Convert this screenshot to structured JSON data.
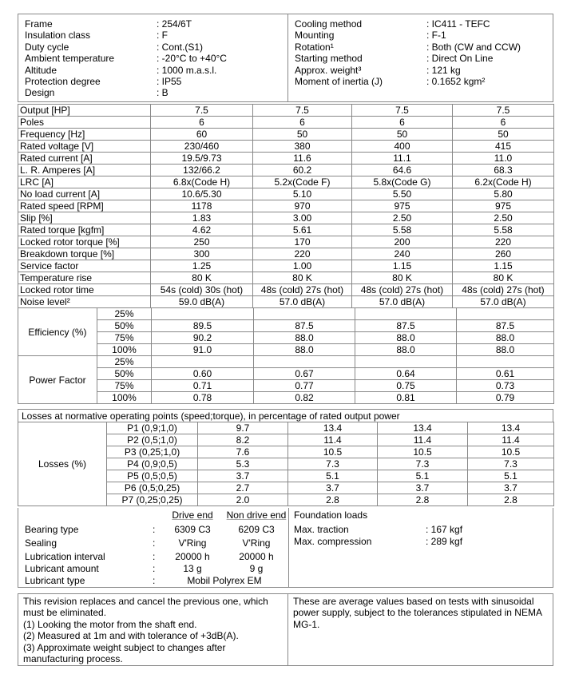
{
  "general_left": [
    {
      "k": "Frame",
      "v": ": 254/6T"
    },
    {
      "k": "Insulation class",
      "v": ": F"
    },
    {
      "k": "Duty cycle",
      "v": ": Cont.(S1)"
    },
    {
      "k": "Ambient temperature",
      "v": ": -20°C to +40°C"
    },
    {
      "k": "Altitude",
      "v": ": 1000 m.a.s.l."
    },
    {
      "k": "Protection degree",
      "v": ": IP55"
    },
    {
      "k": "Design",
      "v": ": B"
    }
  ],
  "general_right": [
    {
      "k": "Cooling method",
      "v": ": IC411 - TEFC"
    },
    {
      "k": "Mounting",
      "v": ": F-1"
    },
    {
      "k": "Rotation¹",
      "v": ": Both (CW and CCW)"
    },
    {
      "k": "Starting method",
      "v": ": Direct On Line"
    },
    {
      "k": "Approx. weight³",
      "v": ": 121 kg"
    },
    {
      "k": "Moment of inertia (J)",
      "v": ": 0.1652 kgm²"
    }
  ],
  "main_rows": [
    [
      "Output [HP]",
      "7.5",
      "7.5",
      "7.5",
      "7.5"
    ],
    [
      "Poles",
      "6",
      "6",
      "6",
      "6"
    ],
    [
      "Frequency [Hz]",
      "60",
      "50",
      "50",
      "50"
    ],
    [
      "Rated voltage [V]",
      "230/460",
      "380",
      "400",
      "415"
    ],
    [
      "Rated current [A]",
      "19.5/9.73",
      "11.6",
      "11.1",
      "11.0"
    ],
    [
      "L. R. Amperes [A]",
      "132/66.2",
      "60.2",
      "64.6",
      "68.3"
    ],
    [
      "LRC [A]",
      "6.8x(Code H)",
      "5.2x(Code F)",
      "5.8x(Code G)",
      "6.2x(Code H)"
    ],
    [
      "No load current [A]",
      "10.6/5.30",
      "5.10",
      "5.50",
      "5.80"
    ],
    [
      "Rated speed [RPM]",
      "1178",
      "970",
      "975",
      "975"
    ],
    [
      "Slip [%]",
      "1.83",
      "3.00",
      "2.50",
      "2.50"
    ],
    [
      "Rated torque [kgfm]",
      "4.62",
      "5.61",
      "5.58",
      "5.58"
    ],
    [
      "Locked rotor torque [%]",
      "250",
      "170",
      "200",
      "220"
    ],
    [
      "Breakdown torque [%]",
      "300",
      "220",
      "240",
      "260"
    ],
    [
      "Service factor",
      "1.25",
      "1.00",
      "1.15",
      "1.15"
    ],
    [
      "Temperature rise",
      "80 K",
      "80 K",
      "80 K",
      "80 K"
    ],
    [
      "Locked rotor time",
      "54s (cold) 30s (hot)",
      "48s (cold) 27s (hot)",
      "48s (cold) 27s (hot)",
      "48s (cold) 27s (hot)"
    ],
    [
      "Noise level²",
      "59.0 dB(A)",
      "57.0 dB(A)",
      "57.0 dB(A)",
      "57.0 dB(A)"
    ]
  ],
  "load_groups": [
    {
      "label": "Efficiency (%)",
      "rows": [
        [
          "25%",
          "",
          "",
          "",
          ""
        ],
        [
          "50%",
          "89.5",
          "87.5",
          "87.5",
          "87.5"
        ],
        [
          "75%",
          "90.2",
          "88.0",
          "88.0",
          "88.0"
        ],
        [
          "100%",
          "91.0",
          "88.0",
          "88.0",
          "88.0"
        ]
      ]
    },
    {
      "label": "Power Factor",
      "rows": [
        [
          "25%",
          "",
          "",
          "",
          ""
        ],
        [
          "50%",
          "0.60",
          "0.67",
          "0.64",
          "0.61"
        ],
        [
          "75%",
          "0.71",
          "0.77",
          "0.75",
          "0.73"
        ],
        [
          "100%",
          "0.78",
          "0.82",
          "0.81",
          "0.79"
        ]
      ]
    }
  ],
  "losses": {
    "heading": "Losses at normative operating points (speed;torque), in percentage of rated output power",
    "label": "Losses (%)",
    "rows": [
      [
        "P1 (0,9;1,0)",
        "9.7",
        "13.4",
        "13.4",
        "13.4"
      ],
      [
        "P2 (0,5;1,0)",
        "8.2",
        "11.4",
        "11.4",
        "11.4"
      ],
      [
        "P3 (0,25;1,0)",
        "7.6",
        "10.5",
        "10.5",
        "10.5"
      ],
      [
        "P4 (0,9;0,5)",
        "5.3",
        "7.3",
        "7.3",
        "7.3"
      ],
      [
        "P5 (0,5;0,5)",
        "3.7",
        "5.1",
        "5.1",
        "5.1"
      ],
      [
        "P6 (0,5;0,25)",
        "2.7",
        "3.7",
        "3.7",
        "3.7"
      ],
      [
        "P7 (0,25;0,25)",
        "2.0",
        "2.8",
        "2.8",
        "2.8"
      ]
    ]
  },
  "bearing": {
    "drive_end": "Drive end",
    "non_drive_end": "Non drive end",
    "rows": [
      {
        "k": "Bearing type",
        "d": "6309 C3",
        "n": "6209 C3"
      },
      {
        "k": "Sealing",
        "d": "V'Ring",
        "n": "V'Ring"
      },
      {
        "k": "Lubrication interval",
        "d": "20000 h",
        "n": "20000 h"
      },
      {
        "k": "Lubricant amount",
        "d": "13 g",
        "n": "9 g"
      }
    ],
    "lubricant_type_label": "Lubricant type",
    "lubricant_type": "Mobil Polyrex EM"
  },
  "foundation": {
    "title": "Foundation loads",
    "rows": [
      {
        "k": "Max. traction",
        "v": ": 167 kgf"
      },
      {
        "k": "Max. compression",
        "v": ": 289 kgf"
      }
    ]
  },
  "notes_left": [
    "This revision replaces and cancel the previous one, which must be eliminated.",
    "(1) Looking the motor from the shaft end.",
    "(2) Measured at 1m and with tolerance of +3dB(A).",
    "(3) Approximate weight subject to changes after manufacturing process."
  ],
  "notes_right": "These are average values based on tests with sinusoidal power supply, subject to the tolerances stipulated in NEMA MG-1."
}
